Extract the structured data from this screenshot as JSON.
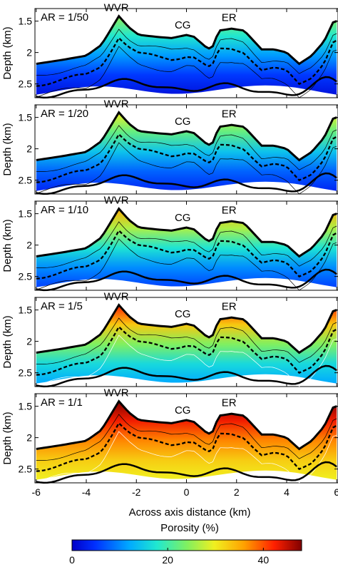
{
  "chart_data": {
    "type": "heatmap",
    "y_axis_label": "Depth (km)",
    "x_axis_label": "Across axis distance (km)",
    "x_ticks": [
      -6,
      -4,
      -2,
      0,
      2,
      4,
      6
    ],
    "y_ticks": [
      1.5,
      2,
      2.5
    ],
    "xlim": [
      -6.05,
      6.05
    ],
    "ylim": [
      1.3,
      2.72
    ],
    "feature_labels": [
      {
        "text": "WVR",
        "x": -2.8,
        "depth": 1.42
      },
      {
        "text": "CG",
        "x": -0.15,
        "depth": 1.7
      },
      {
        "text": "ER",
        "x": 1.7,
        "depth": 1.58
      }
    ],
    "colorbar": {
      "label": "Porosity (%)",
      "ticks": [
        0,
        20,
        40
      ],
      "range": [
        0,
        48
      ],
      "colormap": "jet"
    },
    "seafloor_profile": {
      "x": [
        -6.0,
        -5.0,
        -4.0,
        -3.4,
        -3.0,
        -2.7,
        -2.3,
        -1.9,
        -1.2,
        -0.6,
        0.0,
        0.3,
        0.8,
        1.0,
        1.3,
        1.8,
        2.3,
        2.7,
        3.0,
        3.5,
        4.0,
        4.5,
        5.0,
        5.5,
        5.85,
        6.0
      ],
      "depth": [
        2.18,
        2.12,
        2.05,
        1.88,
        1.62,
        1.42,
        1.6,
        1.72,
        1.75,
        1.77,
        1.72,
        1.75,
        1.92,
        1.95,
        1.65,
        1.62,
        1.65,
        1.82,
        1.95,
        1.95,
        2.0,
        2.18,
        2.05,
        1.82,
        1.52,
        1.5
      ]
    },
    "panels": [
      {
        "title": "AR = 1/50",
        "porosity_at_seafloor": 25,
        "porosity_at_deep_contour": 2
      },
      {
        "title": "AR = 1/20",
        "porosity_at_seafloor": 30,
        "porosity_at_deep_contour": 4
      },
      {
        "title": "AR = 1/10",
        "porosity_at_seafloor": 35,
        "porosity_at_deep_contour": 6
      },
      {
        "title": "AR = 1/5",
        "porosity_at_seafloor": 42,
        "porosity_at_deep_contour": 12
      },
      {
        "title": "AR = 1/1",
        "porosity_at_seafloor": 48,
        "porosity_at_deep_contour": 30
      }
    ]
  }
}
